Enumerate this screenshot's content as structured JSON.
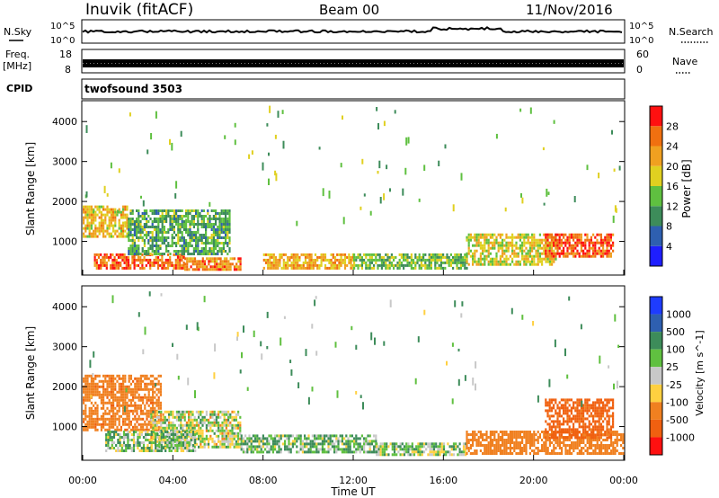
{
  "header": {
    "title": "Inuvik (fitACF)",
    "beam": "Beam 00",
    "date": "11/Nov/2016"
  },
  "strips": {
    "nsky_label": "N.Sky",
    "nsky_ticks": [
      "10^5",
      "10^0"
    ],
    "nsearch_label": "N.Search",
    "nsearch_ticks": [
      "10^5",
      "10^0"
    ],
    "freq_label": "Freq.",
    "freq_unit": "[MHz]",
    "freq_ticks": [
      "18",
      "8"
    ],
    "nave_label": "Nave",
    "nave_ticks": [
      "60",
      "0"
    ],
    "cpid_label": "CPID",
    "cpid_value": "twofsound 3503"
  },
  "chart_data": [
    {
      "type": "heatmap",
      "panel": "power",
      "ylabel": "Slant Range [km]",
      "xlabel": "",
      "ylim": [
        180,
        4500
      ],
      "yticks": [
        "1000",
        "2000",
        "3000",
        "4000"
      ],
      "colorbar_label": "Power [dB]",
      "colorbar_ticks": [
        "4",
        "8",
        "12",
        "16",
        "20",
        "24",
        "28"
      ],
      "colorbar_colors": [
        "#1e1eff",
        "#2e5fb0",
        "#3d8c5a",
        "#5fc040",
        "#e0d020",
        "#f0a020",
        "#f07010",
        "#ff1010"
      ],
      "zlim": [
        0,
        32
      ],
      "regions": [
        {
          "x": [
            0,
            2.0
          ],
          "y": [
            1100,
            1900
          ],
          "z": 20
        },
        {
          "x": [
            0.5,
            4.5
          ],
          "y": [
            350,
            700
          ],
          "z": 26
        },
        {
          "x": [
            2.0,
            6.5
          ],
          "y": [
            700,
            1800
          ],
          "z": 12
        },
        {
          "x": [
            4.5,
            7.0
          ],
          "y": [
            300,
            600
          ],
          "z": 24
        },
        {
          "x": [
            8.0,
            12.0
          ],
          "y": [
            300,
            700
          ],
          "z": 22
        },
        {
          "x": [
            12.0,
            17.0
          ],
          "y": [
            300,
            700
          ],
          "z": 14
        },
        {
          "x": [
            17.0,
            21.0
          ],
          "y": [
            400,
            1200
          ],
          "z": 18
        },
        {
          "x": [
            20.5,
            23.5
          ],
          "y": [
            600,
            1200
          ],
          "z": 27
        }
      ]
    },
    {
      "type": "heatmap",
      "panel": "velocity",
      "ylabel": "Slant Range [km]",
      "xlabel": "Time UT",
      "ylim": [
        180,
        4500
      ],
      "yticks": [
        "1000",
        "2000",
        "3000",
        "4000"
      ],
      "xticks": [
        "00:00",
        "04:00",
        "08:00",
        "12:00",
        "16:00",
        "20:00",
        "00:00"
      ],
      "xlim": [
        0,
        24
      ],
      "colorbar_label": "Velocity [m s^-1]",
      "colorbar_ticks": [
        "1000",
        "500",
        "100",
        "25",
        "-25",
        "-100",
        "-500",
        "-1000"
      ],
      "colorbar_colors": [
        "#1e3cff",
        "#2e5fb0",
        "#3d8c5a",
        "#60c040",
        "#c8c8c8",
        "#ffd040",
        "#f08020",
        "#f06010",
        "#ff1010"
      ],
      "regions": [
        {
          "x": [
            0,
            3.5
          ],
          "y": [
            900,
            2300
          ],
          "v": -400
        },
        {
          "x": [
            3.0,
            7.0
          ],
          "y": [
            500,
            1400
          ],
          "v": 0
        },
        {
          "x": [
            1.0,
            5.0
          ],
          "y": [
            400,
            900
          ],
          "v": 60
        },
        {
          "x": [
            7.0,
            13.0
          ],
          "y": [
            350,
            800
          ],
          "v": 80
        },
        {
          "x": [
            13.0,
            17.0
          ],
          "y": [
            300,
            600
          ],
          "v": 50
        },
        {
          "x": [
            17.0,
            24.0
          ],
          "y": [
            350,
            900
          ],
          "v": -300
        },
        {
          "x": [
            20.5,
            23.5
          ],
          "y": [
            700,
            1700
          ],
          "v": -600
        }
      ]
    }
  ]
}
